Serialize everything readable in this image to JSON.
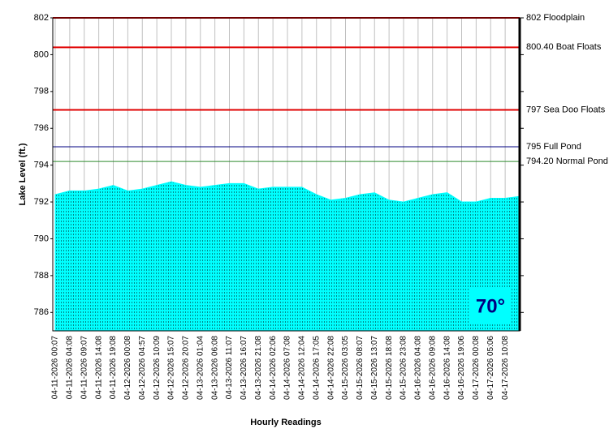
{
  "chart_data": {
    "type": "area",
    "y_label": "Lake Level (ft.)",
    "x_label": "Hourly Readings",
    "annotation": "70°",
    "color": "#00ffff",
    "ylim": [
      785,
      802
    ],
    "yticks": [
      786,
      788,
      790,
      792,
      794,
      796,
      798,
      800,
      802
    ],
    "grid": true,
    "categories": [
      "04-11-2026 00:07",
      "04-11-2026 04:08",
      "04-11-2026 09:07",
      "04-11-2026 14:08",
      "04-11-2026 19:08",
      "04-12-2026 00:08",
      "04-12-2026 04:57",
      "04-12-2026 10:09",
      "04-12-2026 15:07",
      "04-12-2026 20:07",
      "04-13-2026 01:04",
      "04-13-2026 06:08",
      "04-13-2026 11:07",
      "04-13-2026 16:07",
      "04-13-2026 21:08",
      "04-14-2026 02:06",
      "04-14-2026 07:08",
      "04-14-2026 12:04",
      "04-14-2026 17:05",
      "04-14-2026 22:08",
      "04-15-2026 03:05",
      "04-15-2026 08:07",
      "04-15-2026 13:07",
      "04-15-2026 18:08",
      "04-15-2026 23:08",
      "04-16-2026 04:08",
      "04-16-2026 09:08",
      "04-16-2026 14:08",
      "04-16-2026 19:06",
      "04-17-2026 00:08",
      "04-17-2026 05:06",
      "04-17-2026 10:08",
      null
    ],
    "values": [
      792.4,
      792.6,
      792.6,
      792.7,
      792.9,
      792.6,
      792.7,
      792.9,
      793.1,
      792.9,
      792.8,
      792.9,
      793.0,
      793.0,
      792.7,
      792.8,
      792.8,
      792.8,
      792.4,
      792.1,
      792.2,
      792.4,
      792.5,
      792.1,
      792.0,
      792.2,
      792.4,
      792.5,
      792.0,
      792.0,
      792.2,
      792.2,
      792.3
    ],
    "reference_lines": [
      {
        "value": 802,
        "label": "802 Floodplain",
        "color": "#e00000"
      },
      {
        "value": 800.4,
        "label": "800.40 Boat Floats",
        "color": "#e00000"
      },
      {
        "value": 797,
        "label": "797 Sea Doo Floats",
        "color": "#e00000"
      },
      {
        "value": 795,
        "label": "795 Full Pond",
        "color": "#000080"
      },
      {
        "value": 794.2,
        "label": "794.20 Normal Pond",
        "color": "#2e8b2e"
      }
    ]
  }
}
